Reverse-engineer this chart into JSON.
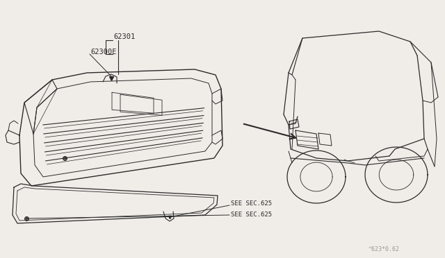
{
  "bg_color": "#f0ede8",
  "line_color": "#2a2a2a",
  "part_labels": [
    "62301",
    "62300E"
  ],
  "ref_labels": [
    "SEE SEC.625",
    "SEE SEC.625"
  ],
  "diagram_code": "^623*0.62"
}
